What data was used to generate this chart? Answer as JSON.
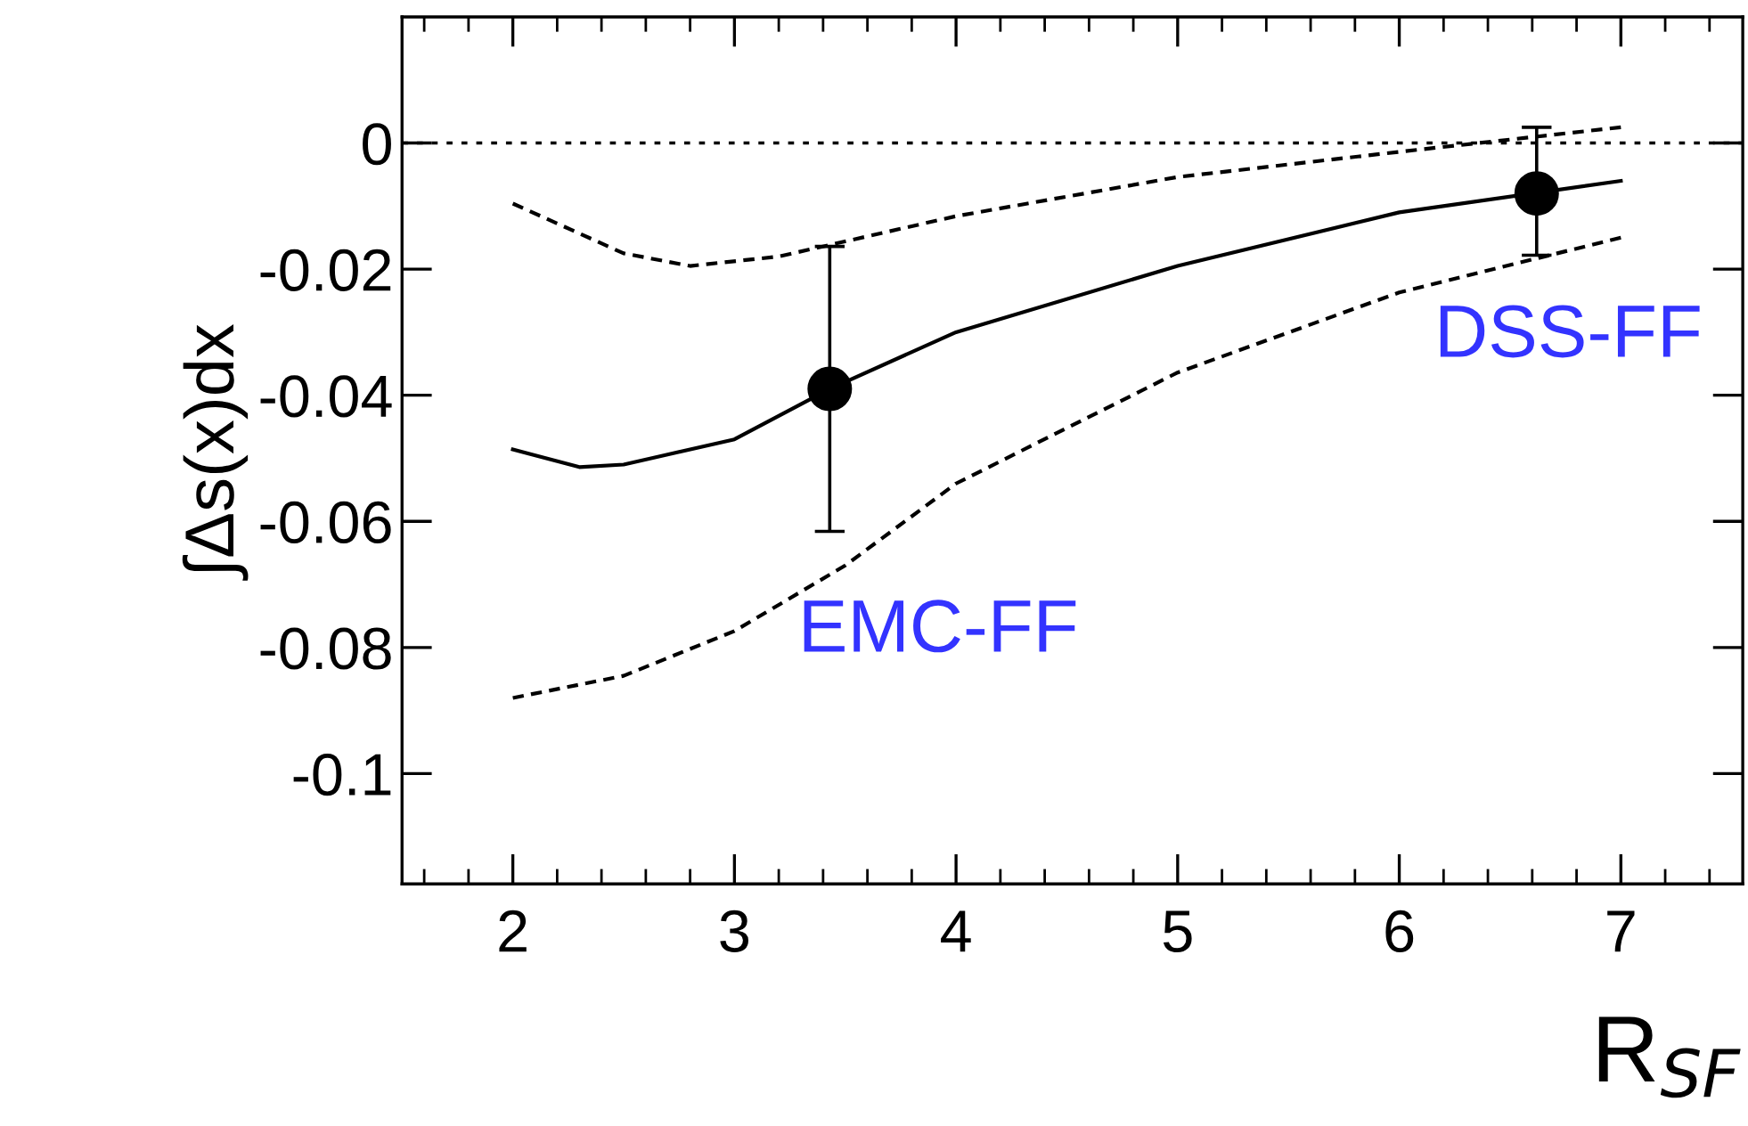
{
  "chart_data": {
    "type": "line",
    "xlabel": "R$_{SF}$",
    "ylabel": "∫Δs(x)dx",
    "xlim": [
      1.5,
      7.55
    ],
    "ylim": [
      -0.1175,
      0.02
    ],
    "xticks": [
      2,
      3,
      4,
      5,
      6,
      7
    ],
    "yticks": [
      0,
      -0.02,
      -0.04,
      -0.06,
      -0.08,
      -0.1
    ],
    "grid": false,
    "series": [
      {
        "color": "#000000",
        "line_style": "solid",
        "marker": "none",
        "x": [
          2,
          2.3,
          2.5,
          3,
          3.43,
          4,
          5,
          6,
          7
        ],
        "values": [
          -0.0486,
          -0.0514,
          -0.051,
          -0.047,
          -0.039,
          -0.03,
          -0.0195,
          -0.011,
          -0.006
        ]
      },
      {
        "color": "#000000",
        "line_style": "dashed",
        "marker": "none",
        "x": [
          2,
          2.5,
          2.8,
          3.2,
          4,
          5,
          6,
          7
        ],
        "values": [
          -0.0096,
          -0.0175,
          -0.0195,
          -0.018,
          -0.0116,
          -0.0054,
          -0.0014,
          0.0025
        ]
      },
      {
        "color": "#000000",
        "line_style": "dashed",
        "marker": "none",
        "x": [
          2,
          2.5,
          3,
          3.5,
          4,
          5,
          6,
          7
        ],
        "values": [
          -0.088,
          -0.0845,
          -0.0774,
          -0.067,
          -0.054,
          -0.0364,
          -0.0237,
          -0.015
        ]
      },
      {
        "type": "scatter",
        "color": "#000000",
        "marker": "circle",
        "x": [
          3.43,
          6.62
        ],
        "values": [
          -0.039,
          -0.008
        ],
        "errors": [
          [
            -0.0616,
            -0.0164
          ],
          [
            -0.0178,
            0.0025
          ]
        ]
      }
    ],
    "ref_lines": [
      {
        "axis": "y",
        "value": 0,
        "color": "#000000",
        "line_style": "dotted"
      }
    ],
    "annotations": [
      "EMC-FF",
      "DSS-FF"
    ]
  }
}
